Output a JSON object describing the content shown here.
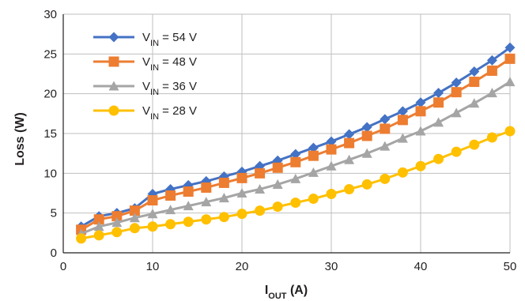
{
  "chart_data": {
    "type": "line",
    "xlabel": {
      "main": "I",
      "sub": "OUT",
      "unit": " (A)"
    },
    "ylabel": "Loss (W)",
    "xlim": [
      0,
      50
    ],
    "ylim": [
      0,
      30
    ],
    "xticks": [
      0,
      10,
      20,
      30,
      40,
      50
    ],
    "yticks": [
      0,
      5,
      10,
      15,
      20,
      25,
      30
    ],
    "grid": true,
    "legend_position": "top-left",
    "x": [
      2,
      4,
      6,
      8,
      10,
      12,
      14,
      16,
      18,
      20,
      22,
      24,
      26,
      28,
      30,
      32,
      34,
      36,
      38,
      40,
      42,
      44,
      46,
      48,
      50
    ],
    "series": [
      {
        "name": {
          "main": "V",
          "sub": "IN",
          "rest": " = 54 V"
        },
        "color": "#4472c4",
        "marker": "diamond",
        "values": [
          3.3,
          4.6,
          5.0,
          5.6,
          7.4,
          8.0,
          8.5,
          9.0,
          9.6,
          10.2,
          10.9,
          11.6,
          12.4,
          13.2,
          14.0,
          14.9,
          15.8,
          16.8,
          17.8,
          18.9,
          20.1,
          21.4,
          22.8,
          24.2,
          25.8
        ]
      },
      {
        "name": {
          "main": "V",
          "sub": "IN",
          "rest": " = 48 V"
        },
        "color": "#ed7d31",
        "marker": "square",
        "values": [
          2.9,
          4.2,
          4.6,
          5.3,
          6.6,
          7.2,
          7.7,
          8.2,
          8.8,
          9.4,
          10.0,
          10.7,
          11.4,
          12.2,
          13.0,
          13.8,
          14.7,
          15.6,
          16.7,
          17.8,
          18.9,
          20.2,
          21.5,
          22.9,
          24.4
        ]
      },
      {
        "name": {
          "main": "V",
          "sub": "IN",
          "rest": " = 36 V"
        },
        "color": "#a5a5a5",
        "marker": "triangle",
        "values": [
          2.4,
          3.3,
          3.8,
          4.4,
          4.9,
          5.4,
          5.9,
          6.4,
          6.9,
          7.5,
          8.0,
          8.6,
          9.3,
          10.1,
          10.9,
          11.7,
          12.5,
          13.4,
          14.4,
          15.3,
          16.4,
          17.6,
          18.8,
          20.1,
          21.5
        ]
      },
      {
        "name": {
          "main": "V",
          "sub": "IN",
          "rest": " = 28 V"
        },
        "color": "#ffc000",
        "marker": "circle",
        "values": [
          1.8,
          2.2,
          2.6,
          3.1,
          3.3,
          3.6,
          3.9,
          4.2,
          4.5,
          4.9,
          5.3,
          5.8,
          6.3,
          6.8,
          7.4,
          8.0,
          8.6,
          9.3,
          10.1,
          10.9,
          11.8,
          12.7,
          13.6,
          14.5,
          15.3
        ]
      }
    ]
  }
}
